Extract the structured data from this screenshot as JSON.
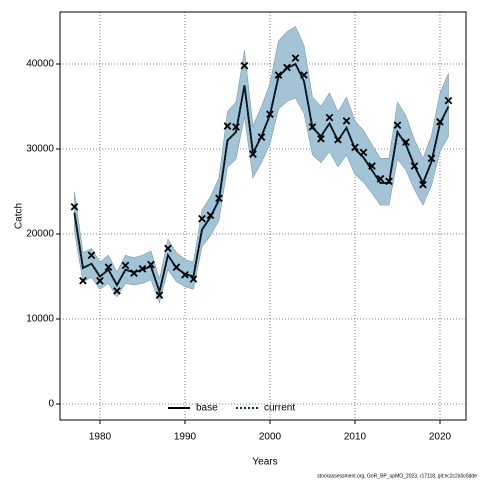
{
  "chart_data": {
    "type": "line",
    "x_label": "Years",
    "y_label": "Catch",
    "footer": "stockassessment.org, GoR_BP_upMO_2023, r17118, git:ec2c2a0c6dde",
    "x": [
      1977,
      1978,
      1979,
      1980,
      1981,
      1982,
      1983,
      1984,
      1985,
      1986,
      1987,
      1988,
      1989,
      1990,
      1991,
      1992,
      1993,
      1994,
      1995,
      1996,
      1997,
      1998,
      1999,
      2000,
      2001,
      2002,
      2003,
      2004,
      2005,
      2006,
      2007,
      2008,
      2009,
      2010,
      2011,
      2012,
      2013,
      2014,
      2015,
      2016,
      2017,
      2018,
      2019,
      2020,
      2021
    ],
    "observed": [
      23200,
      14500,
      17500,
      14500,
      16100,
      13300,
      16300,
      15400,
      15900,
      16400,
      12800,
      18300,
      16100,
      15200,
      14700,
      21800,
      22200,
      24200,
      32700,
      32600,
      39800,
      29400,
      31400,
      34100,
      38700,
      39600,
      40700,
      38700,
      32600,
      31200,
      33700,
      31100,
      33300,
      30200,
      29600,
      28000,
      26500,
      26200,
      32800,
      30800,
      28000,
      25800,
      28900,
      33200,
      35700
    ],
    "band_upper": [
      25000,
      17800,
      18300,
      16700,
      17500,
      15500,
      17500,
      17200,
      17500,
      18000,
      14700,
      19400,
      17800,
      17000,
      16700,
      22800,
      24400,
      26600,
      34400,
      35500,
      41600,
      32700,
      35000,
      37700,
      42700,
      43800,
      44400,
      42200,
      36100,
      35000,
      36600,
      34400,
      36100,
      33300,
      32200,
      30500,
      28900,
      28900,
      35500,
      33900,
      31100,
      28900,
      31600,
      36600,
      38900
    ],
    "band_lower": [
      20300,
      14400,
      14900,
      13500,
      14200,
      12600,
      14200,
      14000,
      14200,
      14600,
      11900,
      15800,
      14400,
      13800,
      13500,
      18500,
      19800,
      21600,
      27900,
      28800,
      33800,
      26600,
      28400,
      30600,
      34700,
      35600,
      36000,
      34200,
      29300,
      28400,
      29700,
      27900,
      29300,
      27000,
      26100,
      24800,
      23400,
      23400,
      28800,
      27500,
      25200,
      23400,
      25700,
      29700,
      31500
    ],
    "band_color": "#a2c4d6",
    "series": [
      {
        "name": "base",
        "color": "#000000",
        "dash": false,
        "values": [
          22500,
          16000,
          16500,
          15000,
          15800,
          14000,
          15800,
          15500,
          15800,
          16200,
          13200,
          17500,
          16000,
          15300,
          15000,
          20500,
          22000,
          24000,
          31000,
          32000,
          37500,
          29500,
          31500,
          34000,
          38500,
          39500,
          40000,
          38000,
          32500,
          31500,
          33000,
          31000,
          32500,
          30000,
          29000,
          27500,
          26000,
          26000,
          32000,
          30500,
          28000,
          26000,
          28500,
          33000,
          35000
        ]
      },
      {
        "name": "current",
        "color": "#0a2a44",
        "dash": true,
        "values": [
          22500,
          16000,
          16500,
          15000,
          15800,
          14000,
          15800,
          15500,
          15800,
          16200,
          13200,
          17500,
          16000,
          15300,
          15000,
          20500,
          22000,
          24000,
          31000,
          32000,
          37500,
          29500,
          31500,
          34000,
          38500,
          39500,
          40000,
          38000,
          32500,
          31500,
          33000,
          31000,
          32500,
          30000,
          29000,
          27500,
          26000,
          26000,
          32000,
          30500,
          28000,
          26000,
          28500,
          33000,
          35000
        ]
      }
    ],
    "xlim": [
      1975.3,
      2023.06
    ],
    "ylim": [
      -1882,
      46118
    ],
    "xticks": [
      1980,
      1990,
      2000,
      2010,
      2020
    ],
    "yticks": [
      0,
      10000,
      20000,
      30000,
      40000
    ],
    "grid": true,
    "legend": "bottom"
  }
}
